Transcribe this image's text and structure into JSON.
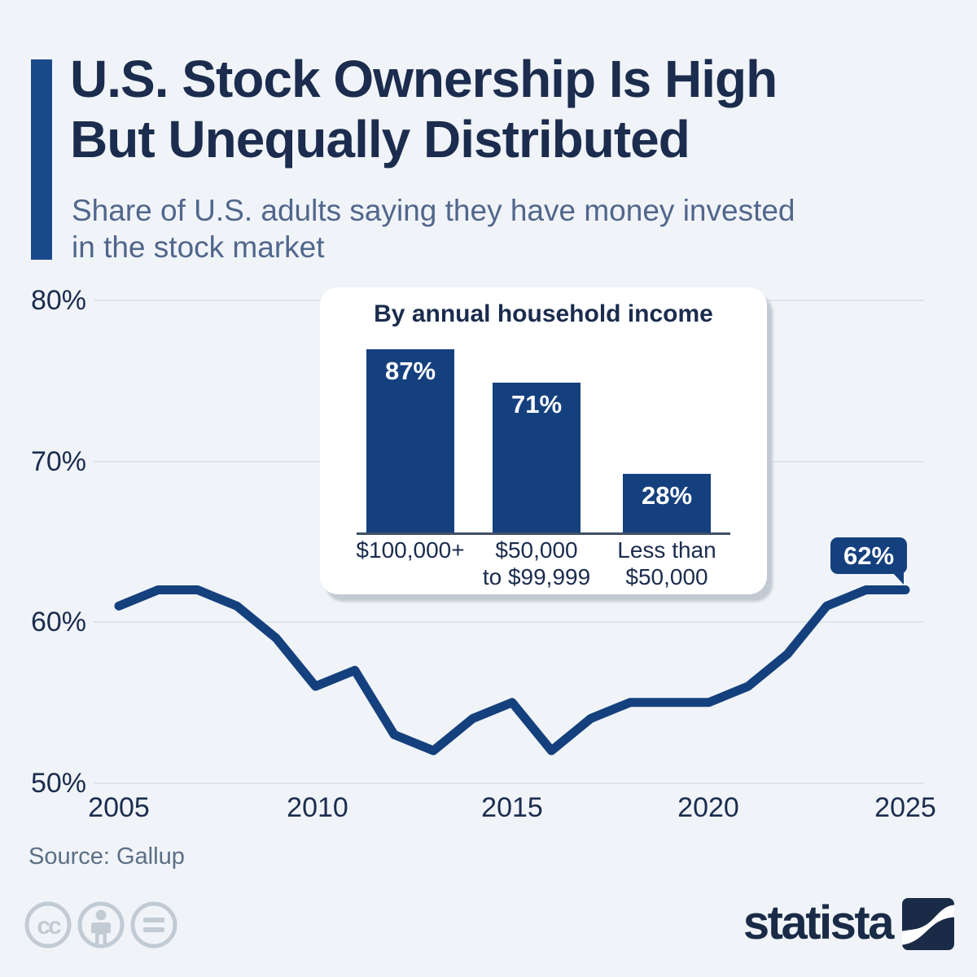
{
  "header": {
    "title_line1": "U.S. Stock Ownership Is High",
    "title_line2": "But Unequally Distributed",
    "subtitle_line1": "Share of U.S. adults saying they have money invested",
    "subtitle_line2": "in the stock market"
  },
  "chart_data": [
    {
      "type": "line",
      "name": "Share of U.S. adults with money invested in the stock market",
      "x": [
        2005,
        2006,
        2007,
        2008,
        2009,
        2010,
        2011,
        2012,
        2013,
        2014,
        2015,
        2016,
        2017,
        2018,
        2019,
        2020,
        2021,
        2022,
        2023,
        2024,
        2025
      ],
      "values": [
        61,
        62,
        62,
        61,
        59,
        56,
        57,
        53,
        52,
        54,
        55,
        52,
        54,
        55,
        55,
        55,
        56,
        58,
        61,
        62,
        62
      ],
      "unit": "%",
      "ylim": [
        50,
        80
      ],
      "yticks": [
        80,
        70,
        60,
        50
      ],
      "y_tick_labels": [
        "80%",
        "70%",
        "60%",
        "50%"
      ],
      "xticks": [
        2005,
        2010,
        2015,
        2020,
        2025
      ],
      "x_tick_labels": [
        "2005",
        "2010",
        "2015",
        "2020",
        "2025"
      ],
      "grid": true,
      "end_point_label": "62%",
      "line_color": "#15407e"
    },
    {
      "type": "bar",
      "title": "By annual household income",
      "categories": [
        "$100,000+",
        "$50,000 to $99,999",
        "Less than $50,000"
      ],
      "category_lines": [
        [
          "$100,000+"
        ],
        [
          "$50,000",
          "to $99,999"
        ],
        [
          "Less than",
          "$50,000"
        ]
      ],
      "values": [
        87,
        71,
        28
      ],
      "value_labels": [
        "87%",
        "71%",
        "28%"
      ],
      "unit": "%",
      "bar_color": "#15407e"
    }
  ],
  "callout": {
    "label": "62%"
  },
  "footer": {
    "source": "Source: Gallup",
    "brand": "statista"
  },
  "icons": {
    "cc": "cc-icon",
    "cc_by": "cc-by-person-icon",
    "cc_nd": "cc-nd-equals-icon",
    "statista_mark": "statista-logo-icon"
  },
  "colors": {
    "background": "#f0f4f8",
    "brand_blue": "#15407e",
    "accent_bar": "#1b4a8b",
    "title_navy": "#1b2c4e",
    "subtitle_blue": "#51668c",
    "gridline": "#d9dfe5",
    "axis_line": "#3f4f63",
    "source_text": "#5c6e84",
    "cc_gray": "#c2cbd4",
    "statista_navy": "#1a2b47",
    "card_shadow": "#c2c9d2"
  }
}
